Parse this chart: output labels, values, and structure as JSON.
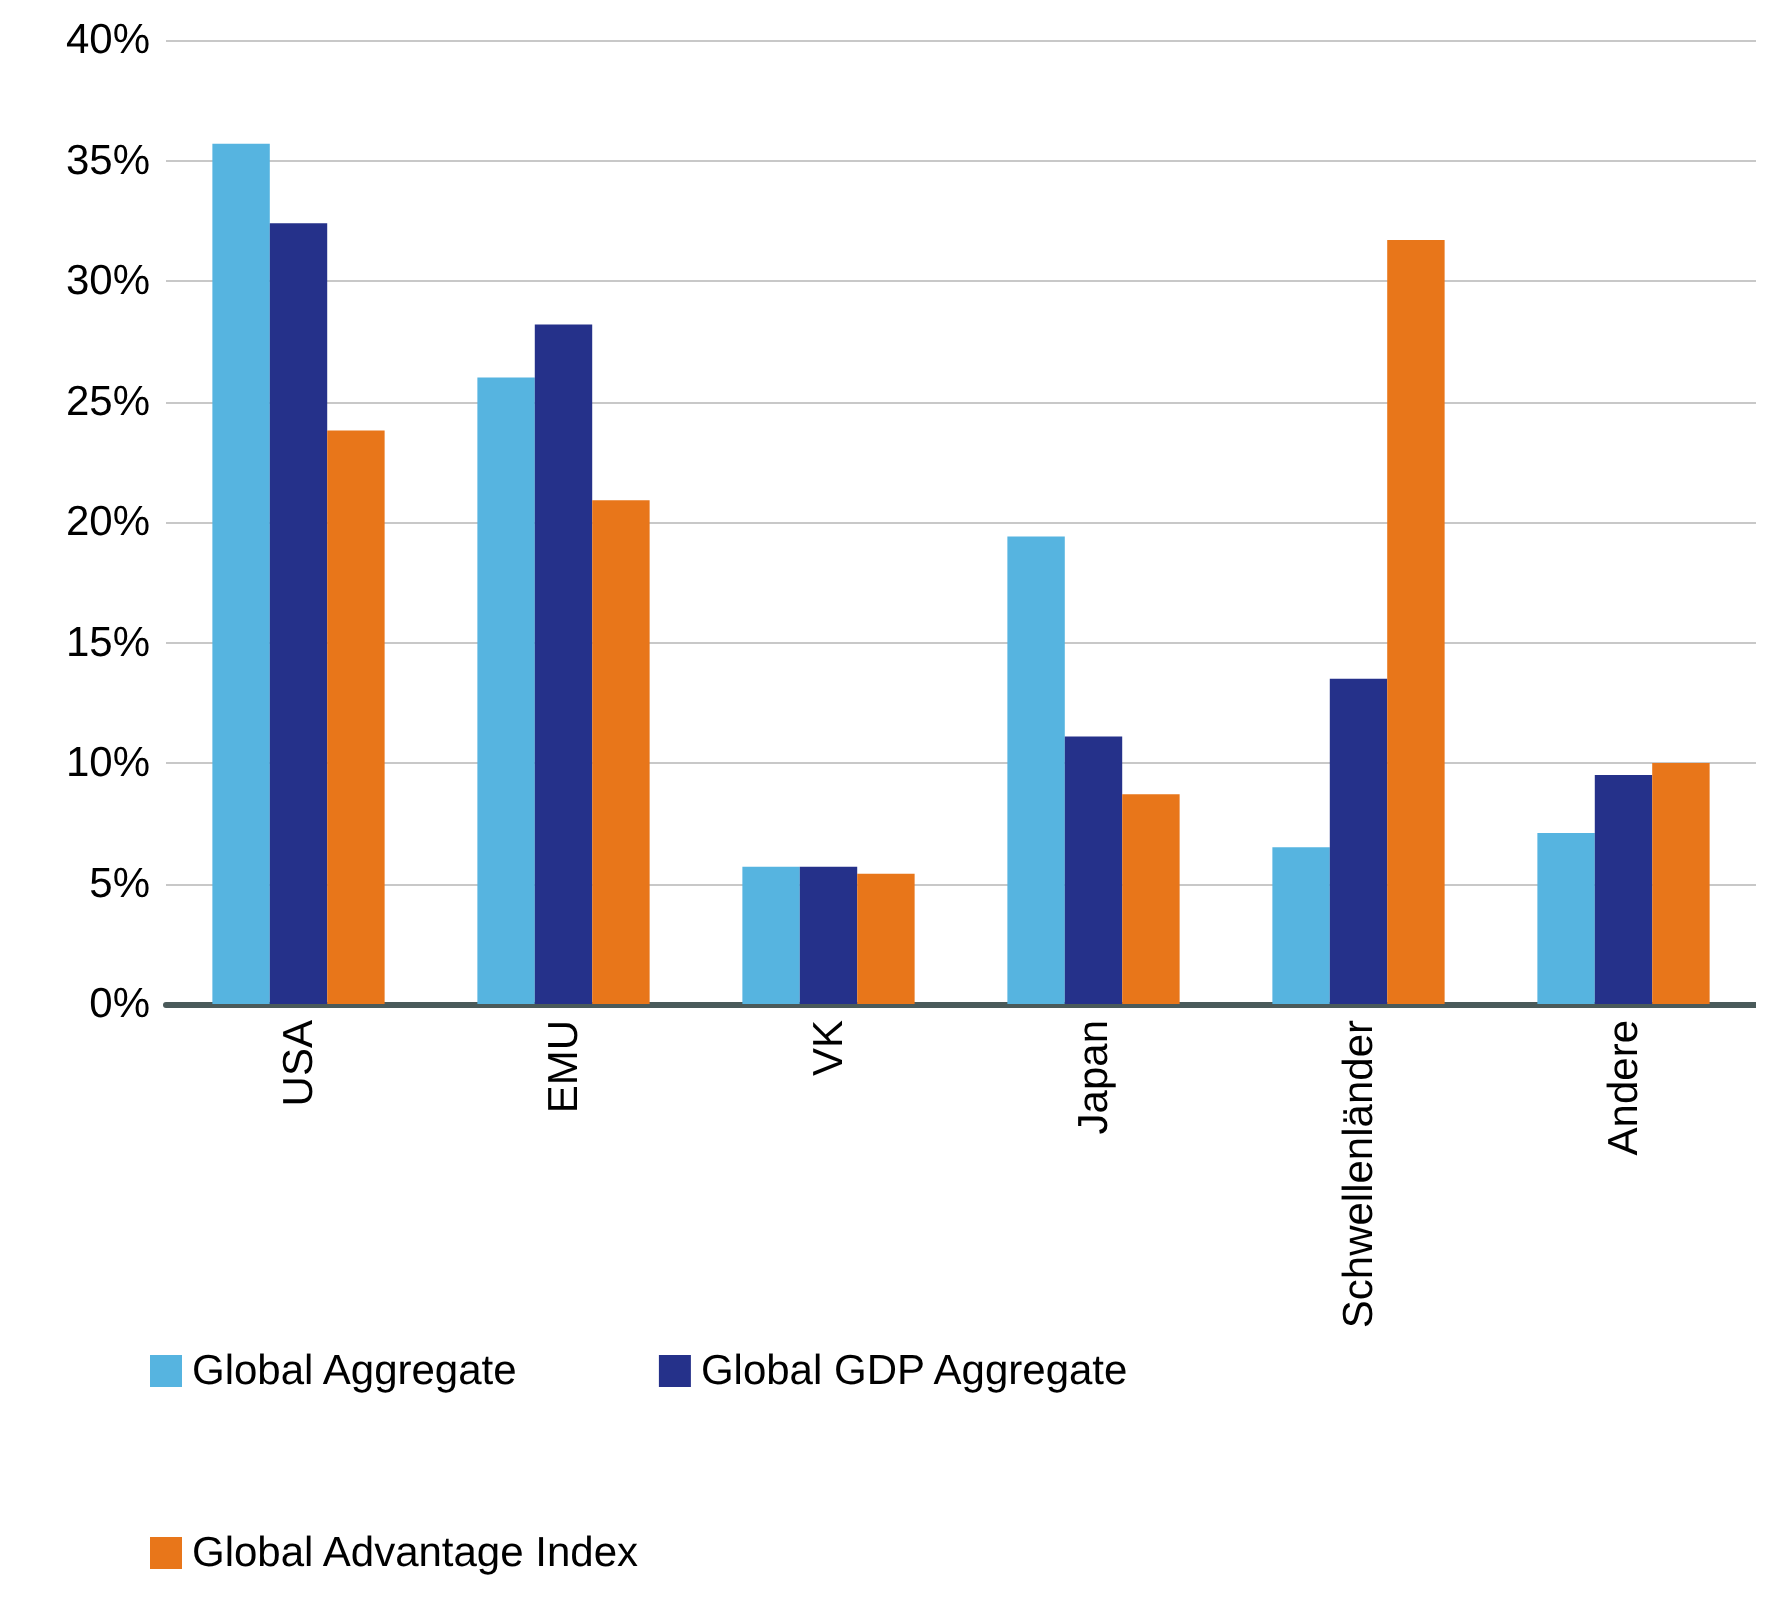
{
  "chart_data": {
    "type": "bar",
    "categories": [
      "USA",
      "EMU",
      "VK",
      "Japan",
      "Schwellenländer",
      "Andere"
    ],
    "series": [
      {
        "name": "Global Aggregate",
        "color": "#56b4e0",
        "values": [
          35.7,
          26.0,
          5.7,
          19.4,
          6.5,
          7.1
        ]
      },
      {
        "name": "Global GDP Aggregate",
        "color": "#25318a",
        "values": [
          32.4,
          28.2,
          5.7,
          11.1,
          13.5,
          9.5
        ]
      },
      {
        "name": "Global Advantage Index",
        "color": "#e8761a",
        "values": [
          23.8,
          20.9,
          5.4,
          8.7,
          31.7,
          10.0
        ]
      }
    ],
    "ylim": [
      0,
      40
    ],
    "yticks": [
      {
        "value": 0,
        "label": "0%"
      },
      {
        "value": 5,
        "label": "5%"
      },
      {
        "value": 10,
        "label": "10%"
      },
      {
        "value": 15,
        "label": "15%"
      },
      {
        "value": 20,
        "label": "20%"
      },
      {
        "value": 25,
        "label": "25%"
      },
      {
        "value": 30,
        "label": "30%"
      },
      {
        "value": 35,
        "label": "35%"
      },
      {
        "value": 40,
        "label": "40%"
      }
    ],
    "grid": "y",
    "legend": "bottom"
  }
}
